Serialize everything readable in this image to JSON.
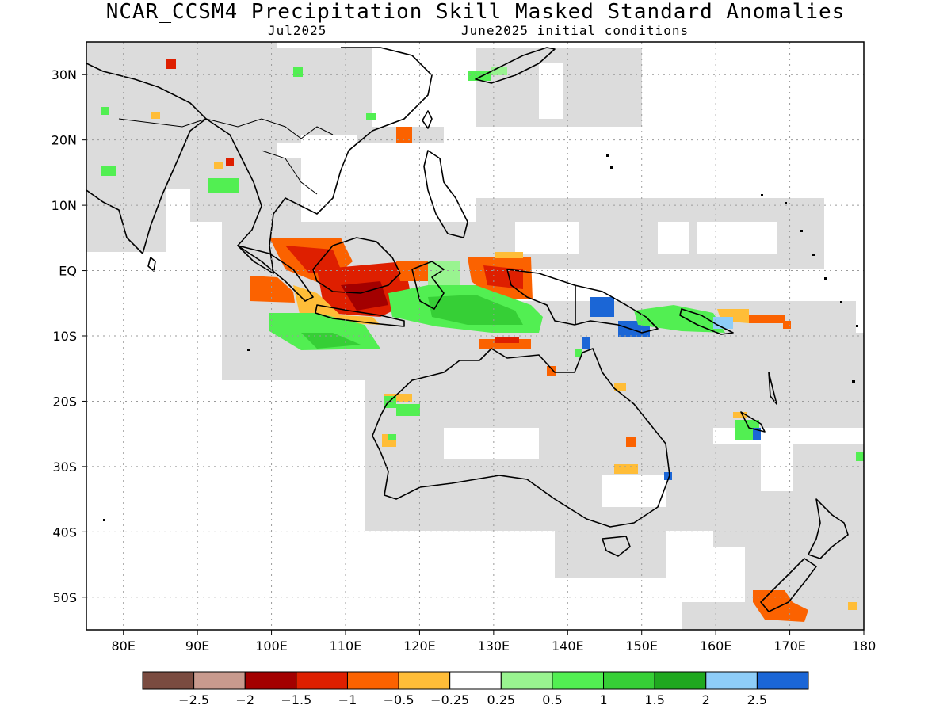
{
  "title": "NCAR_CCSM4 Precipitation Skill Masked Standard Anomalies",
  "subtitle_left": "Jul2025",
  "subtitle_right": "June2025 initial conditions",
  "lat_labels": [
    "30N",
    "20N",
    "10N",
    "EQ",
    "10S",
    "20S",
    "30S",
    "40S",
    "50S"
  ],
  "lon_labels": [
    "80E",
    "90E",
    "100E",
    "110E",
    "120E",
    "130E",
    "140E",
    "150E",
    "160E",
    "170E",
    "180"
  ],
  "colorbar": {
    "colors": [
      "#7a4b40",
      "#c89a8e",
      "#a30000",
      "#de1f00",
      "#fb6200",
      "#ffbd38",
      "#ffffff",
      "#99f490",
      "#52ef52",
      "#36cf36",
      "#1fa81f",
      "#8ecdf8",
      "#1b66d6"
    ],
    "labels": [
      "−2.5",
      "−2",
      "−1.5",
      "−1",
      "−0.5",
      "−0.25",
      "0.25",
      "0.5",
      "1",
      "1.5",
      "2",
      "2.5"
    ]
  },
  "colors": {
    "mask": "#dcdcdc",
    "land_outline": "#000000",
    "grid": "#9a9a9a"
  }
}
